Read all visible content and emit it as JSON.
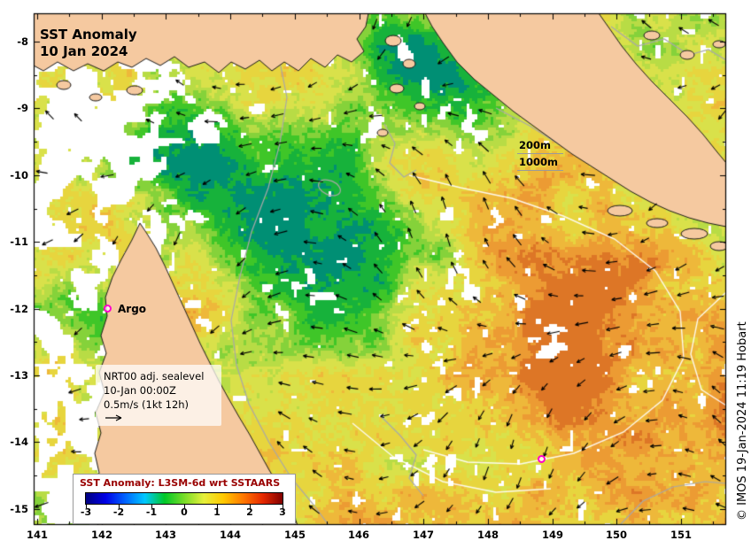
{
  "title": {
    "line1": "SST Anomaly",
    "line2": "10 Jan 2024"
  },
  "depth": {
    "l200": "200m",
    "l1000": "1000m"
  },
  "argo": {
    "label": "Argo"
  },
  "nrt": {
    "line1": "NRT00 adj. sealevel",
    "line2": "10-Jan 00:00Z",
    "line3": "0.5m/s (1kt 12h)"
  },
  "colorbar": {
    "title": "SST Anomaly: L3SM-6d wrt SSTAARS",
    "title_color": "#990000",
    "ticks": [
      "-3",
      "-2",
      "-1",
      "0",
      "1",
      "2",
      "3"
    ],
    "stops": [
      "#000080",
      "#0000e6",
      "#0064ff",
      "#00c8ff",
      "#00c828",
      "#78dc28",
      "#e6f03c",
      "#ffc800",
      "#ff7800",
      "#e62800",
      "#800000"
    ]
  },
  "axes": {
    "x_ticks": [
      "141",
      "142",
      "143",
      "144",
      "145",
      "146",
      "147",
      "148",
      "149",
      "150",
      "151"
    ],
    "y_ticks": [
      "-8",
      "-9",
      "-10",
      "-11",
      "-12",
      "-13",
      "-14",
      "-15"
    ]
  },
  "credit": "© IMOS 19-Jan-2024 11:19 Hobart",
  "map_colors": {
    "land": "#f5c9a0",
    "ocean_base": "#d9e14a",
    "marker": "#ff00cc"
  }
}
